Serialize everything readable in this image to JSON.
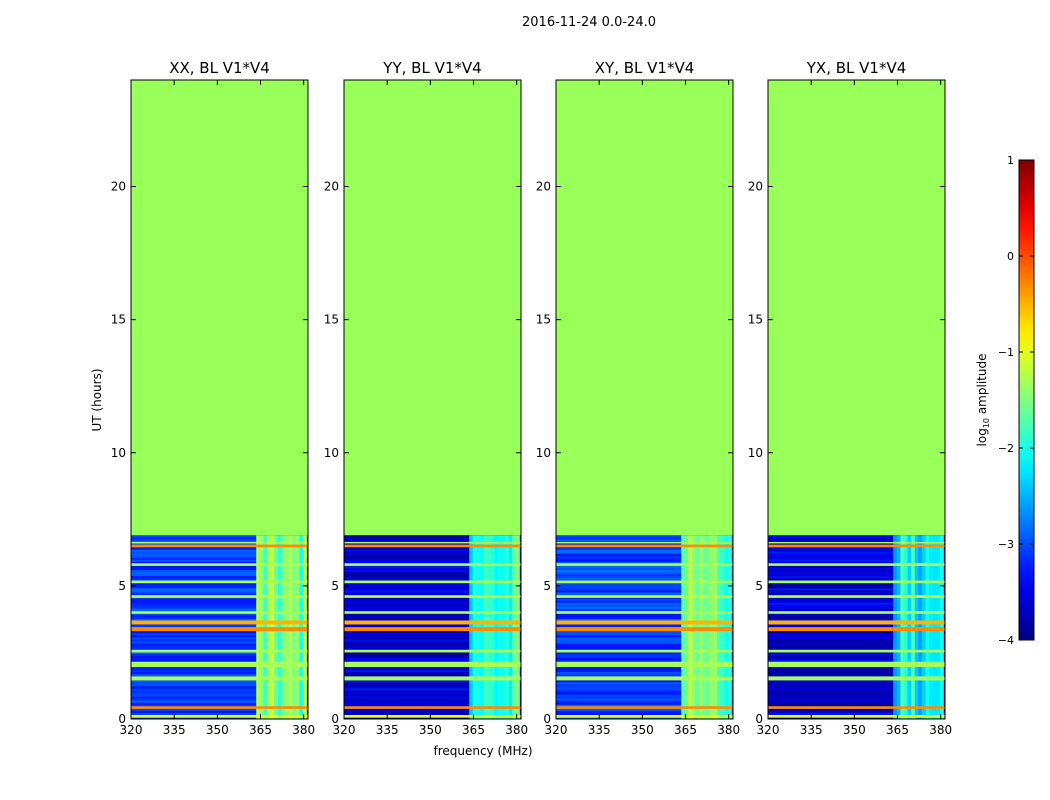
{
  "figure_title": "2016-11-24 0.0-24.0",
  "colors": {
    "empty_fill": "#99ff59",
    "axis": "#000000",
    "background": "#ffffff"
  },
  "chart_data": {
    "type": "heatmap",
    "title": "2016-11-24 0.0-24.0",
    "xlabel": "frequency (MHz)",
    "ylabel": "UT (hours)",
    "xlim": [
      320,
      381.5
    ],
    "ylim": [
      0,
      24
    ],
    "x_ticks": [
      "320",
      "335",
      "350",
      "365",
      "380"
    ],
    "x_tick_values": [
      320,
      335,
      350,
      365,
      380
    ],
    "y_ticks": [
      "0",
      "5",
      "10",
      "15",
      "20"
    ],
    "y_tick_values": [
      0,
      5,
      10,
      15,
      20
    ],
    "data_end_hour": 6.9,
    "rfi_band_mhz": [
      363.5,
      381
    ],
    "panels": [
      {
        "title": "XX, BL V1*V4",
        "base_log_amp": -3.1,
        "band_log_amp": -1.6
      },
      {
        "title": "YY, BL V1*V4",
        "base_log_amp": -3.6,
        "band_log_amp": -2.0
      },
      {
        "title": "XY, BL V1*V4",
        "base_log_amp": -3.1,
        "band_log_amp": -1.6
      },
      {
        "title": "YX, BL V1*V4",
        "base_log_amp": -3.6,
        "band_log_amp": -2.2
      }
    ],
    "flagged_bands_hours": [
      {
        "from": 0.05,
        "to": 0.15,
        "log_amp": -1.0
      },
      {
        "from": 0.38,
        "to": 0.48,
        "log_amp": -0.3
      },
      {
        "from": 1.45,
        "to": 1.6,
        "log_amp": -1.3
      },
      {
        "from": 1.95,
        "to": 2.15,
        "log_amp": -1.3
      },
      {
        "from": 2.5,
        "to": 2.6,
        "log_amp": -1.3
      },
      {
        "from": 3.3,
        "to": 3.45,
        "log_amp": -0.3
      },
      {
        "from": 3.55,
        "to": 3.7,
        "log_amp": -0.5
      },
      {
        "from": 3.95,
        "to": 4.05,
        "log_amp": -1.3
      },
      {
        "from": 4.55,
        "to": 4.65,
        "log_amp": -1.2
      },
      {
        "from": 5.1,
        "to": 5.2,
        "log_amp": -1.3
      },
      {
        "from": 5.75,
        "to": 5.85,
        "log_amp": -1.3
      },
      {
        "from": 6.45,
        "to": 6.55,
        "log_amp": -0.3
      },
      {
        "from": 6.6,
        "to": 6.65,
        "log_amp": -1.3
      }
    ],
    "colorbar": {
      "label": "log10 amplitude",
      "range": [
        -4,
        1
      ],
      "ticks": [
        "1",
        "0",
        "−1",
        "−2",
        "−3",
        "−4"
      ],
      "tick_values": [
        1,
        0,
        -1,
        -2,
        -3,
        -4
      ],
      "colormap": "jet"
    }
  }
}
